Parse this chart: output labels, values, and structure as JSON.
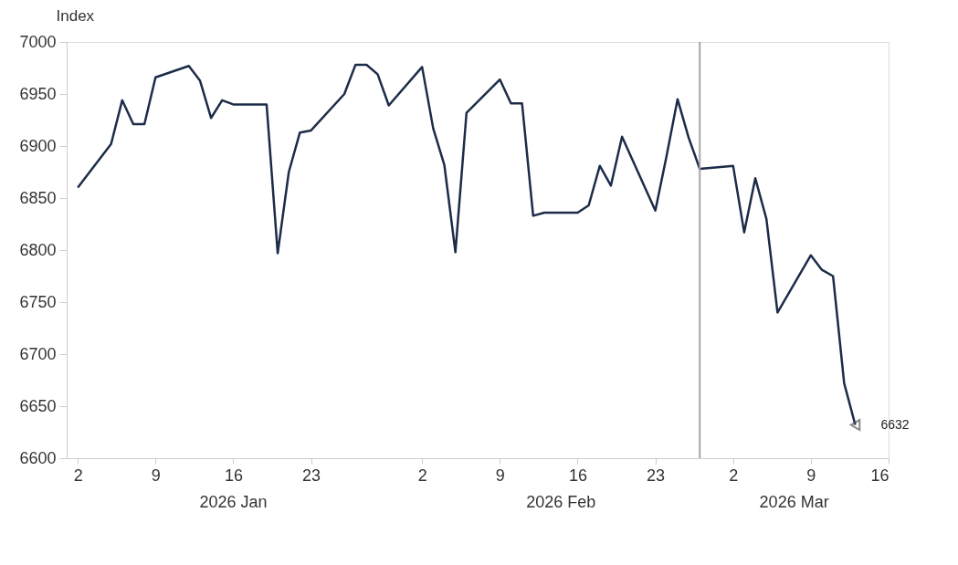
{
  "chart_data": {
    "type": "line",
    "ylabel": "Index",
    "x": [
      "2026-01-02",
      "2026-01-05",
      "2026-01-06",
      "2026-01-07",
      "2026-01-08",
      "2026-01-09",
      "2026-01-12",
      "2026-01-13",
      "2026-01-14",
      "2026-01-15",
      "2026-01-16",
      "2026-01-19",
      "2026-01-20",
      "2026-01-21",
      "2026-01-22",
      "2026-01-23",
      "2026-01-26",
      "2026-01-27",
      "2026-01-28",
      "2026-01-29",
      "2026-01-30",
      "2026-02-02",
      "2026-02-03",
      "2026-02-04",
      "2026-02-05",
      "2026-02-06",
      "2026-02-09",
      "2026-02-10",
      "2026-02-11",
      "2026-02-12",
      "2026-02-13",
      "2026-02-16",
      "2026-02-17",
      "2026-02-18",
      "2026-02-19",
      "2026-02-20",
      "2026-02-23",
      "2026-02-24",
      "2026-02-25",
      "2026-02-26",
      "2026-02-27",
      "2026-03-02",
      "2026-03-03",
      "2026-03-04",
      "2026-03-05",
      "2026-03-06",
      "2026-03-09",
      "2026-03-10",
      "2026-03-11",
      "2026-03-12",
      "2026-03-13"
    ],
    "series": [
      {
        "color": "#1c2c48",
        "values": [
          6860,
          6902,
          6944,
          6921,
          6921,
          6966,
          6977,
          6963,
          6927,
          6944,
          6940,
          6940,
          6797,
          6875,
          6913,
          6915,
          6950,
          6978,
          6978,
          6969,
          6939,
          6976,
          6917,
          6882,
          6798,
          6932,
          6964,
          6941,
          6941,
          6833,
          6836,
          6836,
          6843,
          6881,
          6862,
          6909,
          6838,
          6890,
          6945,
          6908,
          6878,
          6881,
          6817,
          6869,
          6830,
          6740,
          6795,
          6781,
          6775,
          6672,
          6632
        ],
        "value_labels": [
          null,
          null,
          null,
          null,
          null,
          null,
          null,
          null,
          null,
          null,
          null,
          null,
          null,
          null,
          null,
          null,
          null,
          null,
          null,
          null,
          null,
          null,
          null,
          null,
          null,
          null,
          null,
          null,
          null,
          null,
          null,
          null,
          null,
          null,
          null,
          null,
          null,
          null,
          null,
          null,
          null,
          null,
          null,
          null,
          null,
          null,
          null,
          null,
          null,
          null,
          "6632"
        ]
      }
    ],
    "xlim": [
      "2026-01-01",
      "2026-03-16"
    ],
    "xticks": [
      {
        "value": "2026-01-02",
        "label": "2"
      },
      {
        "value": "2026-01-09",
        "label": "9"
      },
      {
        "value": "2026-01-16",
        "label": "16"
      },
      {
        "value": "2026-01-23",
        "label": "23"
      },
      {
        "value": "2026-02-02",
        "label": "2"
      },
      {
        "value": "2026-02-09",
        "label": "9"
      },
      {
        "value": "2026-02-16",
        "label": "16"
      },
      {
        "value": "2026-02-23",
        "label": "23"
      },
      {
        "value": "2026-03-02",
        "label": "2"
      },
      {
        "value": "2026-03-09",
        "label": "9"
      },
      {
        "value": "2026-03-16",
        "label": "16"
      }
    ],
    "ylim": [
      6600,
      7000
    ],
    "yticks": [
      6600,
      6650,
      6700,
      6750,
      6800,
      6850,
      6900,
      6950,
      7000
    ],
    "ref_lines": [
      {
        "axis": "x",
        "value": "2026-02-27",
        "color": "#a6a6a6"
      }
    ],
    "annotations": [
      "2026 Jan",
      "2026 Feb",
      "2026 Mar"
    ],
    "grid": false,
    "marker": "none",
    "line_style": "solid"
  }
}
